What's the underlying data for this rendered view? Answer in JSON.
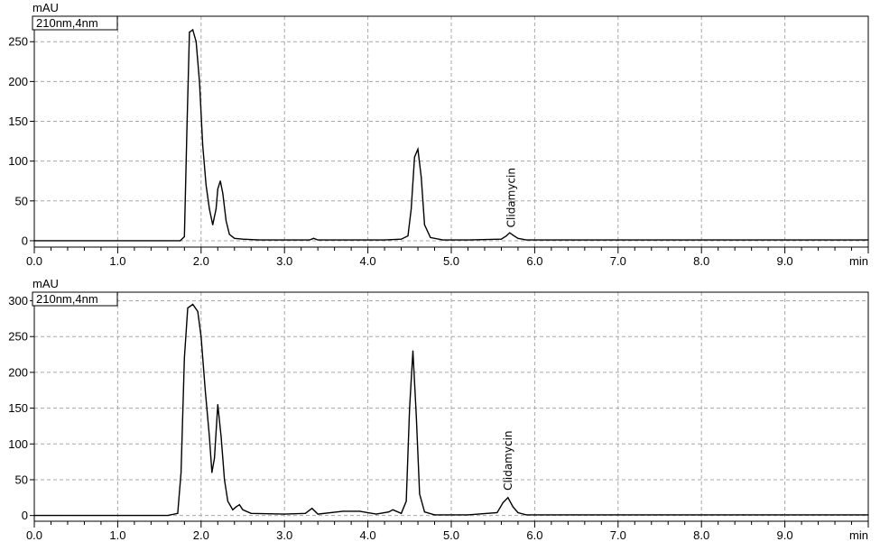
{
  "chart_data": [
    {
      "type": "line",
      "y_unit": "mAU",
      "x_unit": "min",
      "legend": "210nm,4nm",
      "legend_placement": "top-left",
      "grid": true,
      "xlim": [
        0,
        10
      ],
      "ylim": [
        -8,
        282
      ],
      "x_ticks": [
        0,
        1,
        2,
        3,
        4,
        5,
        6,
        7,
        8,
        9
      ],
      "x_tick_labels": [
        "0.0",
        "1.0",
        "2.0",
        "3.0",
        "4.0",
        "5.0",
        "6.0",
        "7.0",
        "8.0",
        "9.0"
      ],
      "y_ticks": [
        0,
        50,
        100,
        150,
        200,
        250
      ],
      "y_tick_labels": [
        "0",
        "50",
        "100",
        "150",
        "200",
        "250"
      ],
      "series": [
        {
          "x": [
            0.0,
            1.5,
            1.75,
            1.8,
            1.83,
            1.86,
            1.9,
            1.94,
            1.98,
            2.02,
            2.06,
            2.1,
            2.14,
            2.18,
            2.2,
            2.23,
            2.26,
            2.3,
            2.34,
            2.4,
            2.5,
            2.7,
            3.0,
            3.3,
            3.35,
            3.4,
            3.8,
            4.2,
            4.4,
            4.48,
            4.52,
            4.56,
            4.6,
            4.64,
            4.68,
            4.75,
            4.9,
            5.2,
            5.6,
            5.66,
            5.7,
            5.74,
            5.8,
            5.9,
            6.5,
            7.0,
            8.5,
            9.0,
            10.0
          ],
          "y": [
            0,
            0,
            0,
            5,
            140,
            262,
            265,
            250,
            200,
            120,
            70,
            40,
            20,
            40,
            65,
            75,
            60,
            25,
            8,
            3,
            2,
            1,
            1,
            1,
            3,
            1,
            1,
            1,
            2,
            6,
            40,
            105,
            115,
            80,
            20,
            4,
            1,
            1,
            2,
            6,
            10,
            7,
            3,
            1,
            1,
            1,
            1,
            1,
            1
          ]
        }
      ],
      "annotations": [
        {
          "text": "Clidamycin",
          "x": 5.72,
          "y": 12
        }
      ]
    },
    {
      "type": "line",
      "y_unit": "mAU",
      "x_unit": "min",
      "legend": "210nm,4nm",
      "legend_placement": "top-left",
      "grid": true,
      "xlim": [
        0,
        10
      ],
      "ylim": [
        -8,
        312
      ],
      "x_ticks": [
        0,
        1,
        2,
        3,
        4,
        5,
        6,
        7,
        8,
        9
      ],
      "x_tick_labels": [
        "0.0",
        "1.0",
        "2.0",
        "3.0",
        "4.0",
        "5.0",
        "6.0",
        "7.0",
        "8.0",
        "9.0"
      ],
      "y_ticks": [
        0,
        50,
        100,
        150,
        200,
        250,
        300
      ],
      "y_tick_labels": [
        "0",
        "50",
        "100",
        "150",
        "200",
        "250",
        "300"
      ],
      "series": [
        {
          "x": [
            0.0,
            1.6,
            1.72,
            1.76,
            1.8,
            1.84,
            1.9,
            1.96,
            2.0,
            2.05,
            2.1,
            2.13,
            2.16,
            2.2,
            2.24,
            2.28,
            2.32,
            2.38,
            2.42,
            2.46,
            2.5,
            2.6,
            3.0,
            3.25,
            3.33,
            3.4,
            3.7,
            3.9,
            4.1,
            4.25,
            4.3,
            4.4,
            4.46,
            4.5,
            4.54,
            4.58,
            4.62,
            4.68,
            4.8,
            5.2,
            5.55,
            5.62,
            5.68,
            5.74,
            5.8,
            5.9,
            6.5,
            7.5,
            8.5,
            10.0
          ],
          "y": [
            0,
            0,
            3,
            60,
            220,
            290,
            295,
            285,
            250,
            175,
            110,
            60,
            80,
            155,
            110,
            50,
            20,
            8,
            12,
            15,
            8,
            3,
            2,
            3,
            10,
            2,
            6,
            6,
            2,
            5,
            8,
            3,
            20,
            150,
            230,
            140,
            30,
            5,
            1,
            1,
            4,
            18,
            25,
            12,
            4,
            1,
            1,
            1,
            1,
            1
          ]
        }
      ],
      "annotations": [
        {
          "text": "Clidamycin",
          "x": 5.68,
          "y": 30
        }
      ]
    }
  ]
}
